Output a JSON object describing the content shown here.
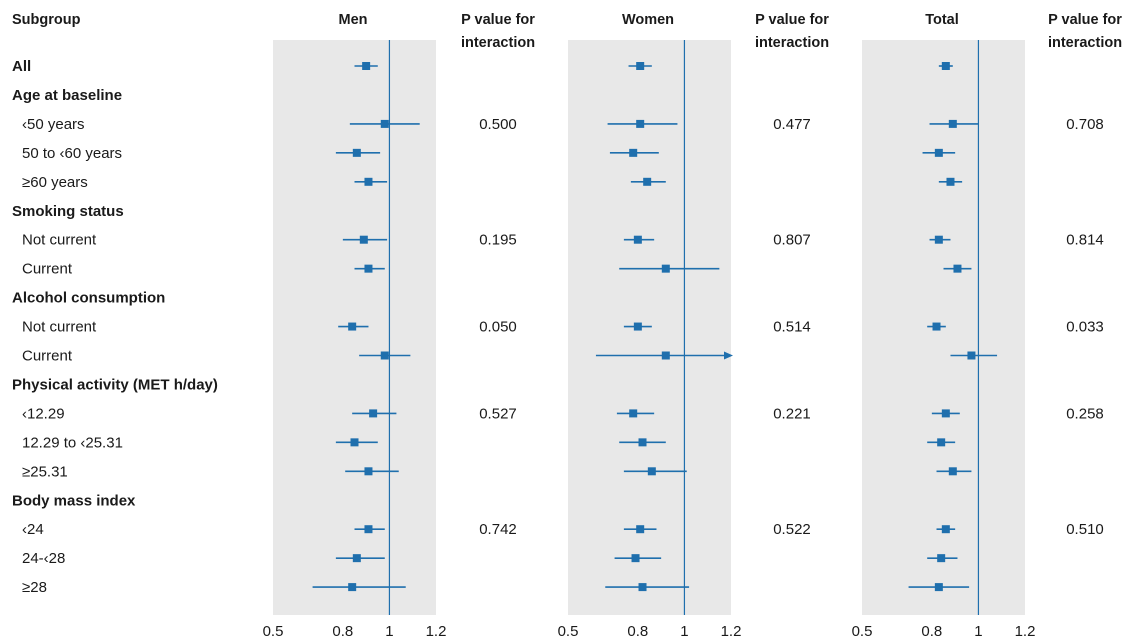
{
  "chart_data": {
    "type": "forest",
    "header": {
      "subgroup": "Subgroup",
      "panels": [
        "Men",
        "Women",
        "Total"
      ],
      "pval_line1": "P value for",
      "pval_line2": "interaction"
    },
    "x_ticks": [
      "0.5",
      "0.8",
      "1",
      "1.2"
    ],
    "xlim": [
      0.5,
      1.2
    ],
    "reference_line": 1,
    "colors": {
      "marker": "#1f6fad",
      "panel_bg": "#e8e8e8",
      "text": "#1a1a1a"
    },
    "rows": [
      {
        "label": "All",
        "bold": true,
        "men": [
          0.9,
          0.85,
          0.95
        ],
        "women": [
          0.81,
          0.76,
          0.86
        ],
        "total": [
          0.86,
          0.83,
          0.89
        ]
      },
      {
        "label": "Age at baseline",
        "bold": true
      },
      {
        "label": "‹50 years",
        "indent": true,
        "men": [
          0.98,
          0.83,
          1.13
        ],
        "women": [
          0.81,
          0.67,
          0.97
        ],
        "total": [
          0.89,
          0.79,
          1.0
        ],
        "p_men": "0.500",
        "p_women": "0.477",
        "p_total": "0.708"
      },
      {
        "label": "50 to ‹60 years",
        "indent": true,
        "men": [
          0.86,
          0.77,
          0.96
        ],
        "women": [
          0.78,
          0.68,
          0.89
        ],
        "total": [
          0.83,
          0.76,
          0.9
        ]
      },
      {
        "label": "≥60 years",
        "indent": true,
        "men": [
          0.91,
          0.85,
          0.99
        ],
        "women": [
          0.84,
          0.77,
          0.92
        ],
        "total": [
          0.88,
          0.83,
          0.93
        ]
      },
      {
        "label": "Smoking status",
        "bold": true
      },
      {
        "label": "Not current",
        "indent": true,
        "men": [
          0.89,
          0.8,
          0.99
        ],
        "women": [
          0.8,
          0.74,
          0.87
        ],
        "total": [
          0.83,
          0.79,
          0.88
        ]
      },
      {
        "label": "Current",
        "indent": true,
        "men": [
          0.91,
          0.85,
          0.98
        ],
        "women": [
          0.92,
          0.72,
          1.15
        ],
        "total": [
          0.91,
          0.85,
          0.97
        ]
      },
      {
        "label": "Alcohol consumption",
        "bold": true
      },
      {
        "label": "Not current",
        "indent": true,
        "men": [
          0.84,
          0.78,
          0.91
        ],
        "women": [
          0.8,
          0.74,
          0.86
        ],
        "total": [
          0.82,
          0.78,
          0.86
        ]
      },
      {
        "label": "Current",
        "indent": true,
        "men": [
          0.98,
          0.87,
          1.09
        ],
        "women": [
          0.92,
          0.62,
          1.2
        ],
        "total": [
          0.97,
          0.88,
          1.08
        ],
        "arrow_right_women": true
      },
      {
        "label": "Physical activity (MET h/day)",
        "bold": true
      },
      {
        "label": "‹12.29",
        "indent": true,
        "men": [
          0.93,
          0.84,
          1.03
        ],
        "women": [
          0.78,
          0.71,
          0.87
        ],
        "total": [
          0.86,
          0.8,
          0.92
        ]
      },
      {
        "label": "12.29 to ‹25.31",
        "indent": true,
        "men": [
          0.85,
          0.77,
          0.95
        ],
        "women": [
          0.82,
          0.72,
          0.92
        ],
        "total": [
          0.84,
          0.78,
          0.9
        ]
      },
      {
        "label": "≥25.31",
        "indent": true,
        "men": [
          0.91,
          0.81,
          1.04
        ],
        "women": [
          0.86,
          0.74,
          1.01
        ],
        "total": [
          0.89,
          0.82,
          0.97
        ]
      },
      {
        "label": "Body mass index",
        "bold": true
      },
      {
        "label": "‹24",
        "indent": true,
        "men": [
          0.91,
          0.85,
          0.98
        ],
        "women": [
          0.81,
          0.74,
          0.88
        ],
        "total": [
          0.86,
          0.82,
          0.9
        ],
        "p_men": "0.742",
        "p_women": "0.522",
        "p_total": "0.510"
      },
      {
        "label": "24-‹28",
        "indent": true,
        "men": [
          0.86,
          0.77,
          0.98
        ],
        "women": [
          0.79,
          0.7,
          0.9
        ],
        "total": [
          0.84,
          0.78,
          0.91
        ]
      },
      {
        "label": "≥28",
        "indent": true,
        "men": [
          0.84,
          0.67,
          1.07
        ],
        "women": [
          0.82,
          0.66,
          1.02
        ],
        "total": [
          0.83,
          0.7,
          0.96
        ]
      }
    ],
    "p_values_by_group": [
      {
        "row": "‹50 years",
        "men": "0.500",
        "women": "0.477",
        "total": "0.708"
      },
      {
        "row": "Smoking status / Not current",
        "men": "0.195",
        "women": "0.807",
        "total": "0.814"
      },
      {
        "row": "Alcohol consumption / Not current",
        "men": "0.050",
        "women": "0.514",
        "total": "0.033"
      },
      {
        "row": "‹12.29",
        "men": "0.527",
        "women": "0.221",
        "total": "0.258"
      },
      {
        "row": "‹24",
        "men": "0.742",
        "women": "0.522",
        "total": "0.510"
      }
    ]
  }
}
